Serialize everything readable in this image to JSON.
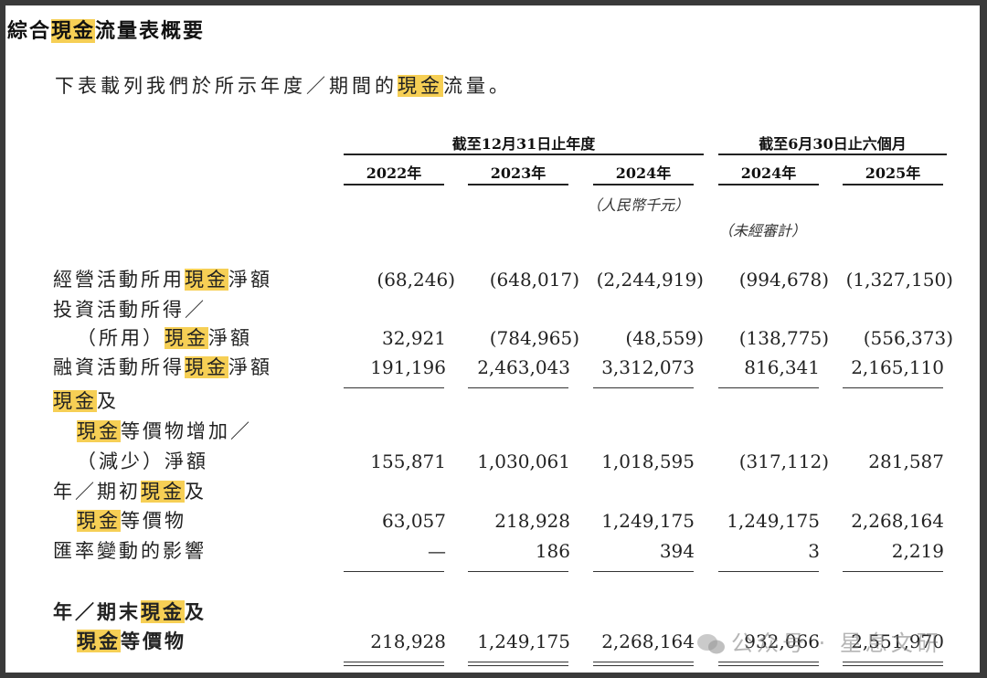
{
  "title": {
    "pre": "綜合",
    "hl": "現金",
    "post": "流量表概要"
  },
  "intro": {
    "pre": "下表載列我們於所示年度／期間的",
    "hl": "現金",
    "post": "流量。"
  },
  "headers": {
    "period_year": "截至12月31日止年度",
    "period_six": "截至6月30日止六個月",
    "years": [
      "2022年",
      "2023年",
      "2024年",
      "2024年",
      "2025年"
    ],
    "currency_note": "（人民幣千元）",
    "unaudited_note": "（未經審計）"
  },
  "rows": [
    {
      "label": [
        {
          "t": "經營活動所用"
        },
        {
          "t": "現金",
          "hl": true
        },
        {
          "t": "淨額"
        }
      ],
      "values": [
        "(68,246)",
        "(648,017)",
        "(2,244,919)",
        "(994,678)",
        "(1,327,150)"
      ]
    },
    {
      "label": [
        {
          "t": "投資活動所得／"
        }
      ],
      "values": []
    },
    {
      "label": [
        {
          "t": "（所用）"
        },
        {
          "t": "現金",
          "hl": true
        },
        {
          "t": "淨額"
        }
      ],
      "indent": true,
      "values": [
        "32,921",
        "(784,965)",
        "(48,559)",
        "(138,775)",
        "(556,373)"
      ]
    },
    {
      "label": [
        {
          "t": "融資活動所得"
        },
        {
          "t": "現金",
          "hl": true
        },
        {
          "t": "淨額"
        }
      ],
      "values": [
        "191,196",
        "2,463,043",
        "3,312,073",
        "816,341",
        "2,165,110"
      ]
    },
    {
      "label": [
        {
          "t": "現金",
          "hl": true
        },
        {
          "t": "及"
        }
      ],
      "values": []
    },
    {
      "label": [
        {
          "t": "現金",
          "hl": true
        },
        {
          "t": "等價物增加／"
        }
      ],
      "indent": true,
      "values": []
    },
    {
      "label": [
        {
          "t": "（減少）淨額"
        }
      ],
      "indent": true,
      "values": [
        "155,871",
        "1,030,061",
        "1,018,595",
        "(317,112)",
        "281,587"
      ]
    },
    {
      "label": [
        {
          "t": "年／期初"
        },
        {
          "t": "現金",
          "hl": true
        },
        {
          "t": "及"
        }
      ],
      "values": []
    },
    {
      "label": [
        {
          "t": "現金",
          "hl": true
        },
        {
          "t": "等價物"
        }
      ],
      "indent": true,
      "values": [
        "63,057",
        "218,928",
        "1,249,175",
        "1,249,175",
        "2,268,164"
      ]
    },
    {
      "label": [
        {
          "t": "匯率變動的影響"
        }
      ],
      "values": [
        "—",
        "186",
        "394",
        "3",
        "2,219"
      ]
    },
    {
      "label": [
        {
          "t": "年／期末"
        },
        {
          "t": "現金",
          "hl": true
        },
        {
          "t": "及"
        }
      ],
      "bold": true,
      "values": []
    },
    {
      "label": [
        {
          "t": "現金",
          "hl": true
        },
        {
          "t": "等價物"
        }
      ],
      "indent": true,
      "bold": true,
      "values": [
        "218,928",
        "1,249,175",
        "2,268,164",
        "932,066",
        "2,551,970"
      ]
    }
  ],
  "watermark": "公众号 · 星息文研"
}
